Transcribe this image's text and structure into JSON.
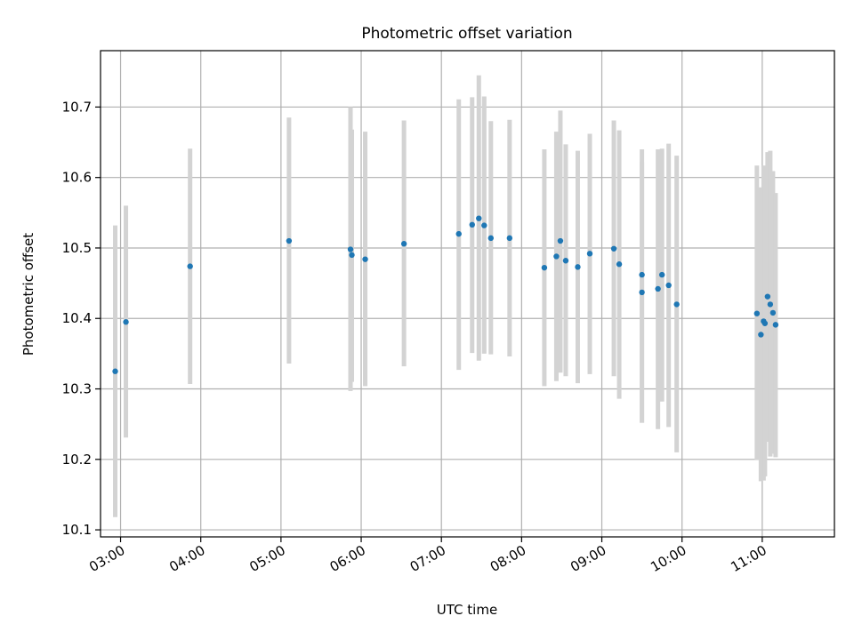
{
  "chart_data": {
    "type": "scatter",
    "title": "Photometric offset variation",
    "xlabel": "UTC time",
    "ylabel": "Photometric offset",
    "x_ticks": [
      "03:00",
      "04:00",
      "05:00",
      "06:00",
      "07:00",
      "08:00",
      "09:00",
      "10:00",
      "11:00"
    ],
    "y_ticks": [
      "10.1",
      "10.2",
      "10.3",
      "10.4",
      "10.5",
      "10.6",
      "10.7"
    ],
    "xlim": [
      "02:45",
      "11:54"
    ],
    "ylim": [
      10.09,
      10.78
    ],
    "grid": true,
    "colors": {
      "points": "#1f77b4",
      "errorbars": "#d3d3d3",
      "grid": "#b0b0b0"
    },
    "points": [
      {
        "t": "02:56",
        "y": 10.325,
        "lo": 10.118,
        "hi": 10.532
      },
      {
        "t": "03:04",
        "y": 10.395,
        "lo": 10.231,
        "hi": 10.56
      },
      {
        "t": "03:52",
        "y": 10.474,
        "lo": 10.307,
        "hi": 10.641
      },
      {
        "t": "05:06",
        "y": 10.51,
        "lo": 10.336,
        "hi": 10.685
      },
      {
        "t": "05:52",
        "y": 10.498,
        "lo": 10.297,
        "hi": 10.7
      },
      {
        "t": "05:53",
        "y": 10.49,
        "lo": 10.31,
        "hi": 10.668
      },
      {
        "t": "06:03",
        "y": 10.484,
        "lo": 10.304,
        "hi": 10.665
      },
      {
        "t": "06:32",
        "y": 10.506,
        "lo": 10.332,
        "hi": 10.681
      },
      {
        "t": "07:13",
        "y": 10.52,
        "lo": 10.327,
        "hi": 10.711
      },
      {
        "t": "07:23",
        "y": 10.533,
        "lo": 10.351,
        "hi": 10.714
      },
      {
        "t": "07:28",
        "y": 10.542,
        "lo": 10.34,
        "hi": 10.745
      },
      {
        "t": "07:32",
        "y": 10.532,
        "lo": 10.35,
        "hi": 10.715
      },
      {
        "t": "07:37",
        "y": 10.514,
        "lo": 10.349,
        "hi": 10.68
      },
      {
        "t": "07:51",
        "y": 10.514,
        "lo": 10.346,
        "hi": 10.682
      },
      {
        "t": "08:17",
        "y": 10.472,
        "lo": 10.304,
        "hi": 10.64
      },
      {
        "t": "08:26",
        "y": 10.488,
        "lo": 10.311,
        "hi": 10.665
      },
      {
        "t": "08:29",
        "y": 10.51,
        "lo": 10.323,
        "hi": 10.695
      },
      {
        "t": "08:33",
        "y": 10.482,
        "lo": 10.318,
        "hi": 10.647
      },
      {
        "t": "08:42",
        "y": 10.473,
        "lo": 10.308,
        "hi": 10.638
      },
      {
        "t": "08:51",
        "y": 10.492,
        "lo": 10.321,
        "hi": 10.662
      },
      {
        "t": "09:09",
        "y": 10.499,
        "lo": 10.318,
        "hi": 10.681
      },
      {
        "t": "09:13",
        "y": 10.477,
        "lo": 10.286,
        "hi": 10.667
      },
      {
        "t": "09:30",
        "y": 10.462,
        "lo": 10.252,
        "hi": 10.64
      },
      {
        "t": "09:30",
        "y": 10.437,
        "lo": 10.252,
        "hi": 10.622
      },
      {
        "t": "09:42",
        "y": 10.442,
        "lo": 10.243,
        "hi": 10.64
      },
      {
        "t": "09:45",
        "y": 10.462,
        "lo": 10.282,
        "hi": 10.641
      },
      {
        "t": "09:50",
        "y": 10.447,
        "lo": 10.246,
        "hi": 10.648
      },
      {
        "t": "09:56",
        "y": 10.42,
        "lo": 10.21,
        "hi": 10.631
      },
      {
        "t": "10:56",
        "y": 10.407,
        "lo": 10.199,
        "hi": 10.617
      },
      {
        "t": "10:59",
        "y": 10.377,
        "lo": 10.169,
        "hi": 10.586
      },
      {
        "t": "11:01",
        "y": 10.396,
        "lo": 10.17,
        "hi": 10.617
      },
      {
        "t": "11:02",
        "y": 10.393,
        "lo": 10.176,
        "hi": 10.587
      },
      {
        "t": "11:04",
        "y": 10.431,
        "lo": 10.225,
        "hi": 10.636
      },
      {
        "t": "11:06",
        "y": 10.42,
        "lo": 10.204,
        "hi": 10.638
      },
      {
        "t": "11:08",
        "y": 10.408,
        "lo": 10.208,
        "hi": 10.609
      },
      {
        "t": "11:10",
        "y": 10.391,
        "lo": 10.203,
        "hi": 10.578
      }
    ]
  }
}
